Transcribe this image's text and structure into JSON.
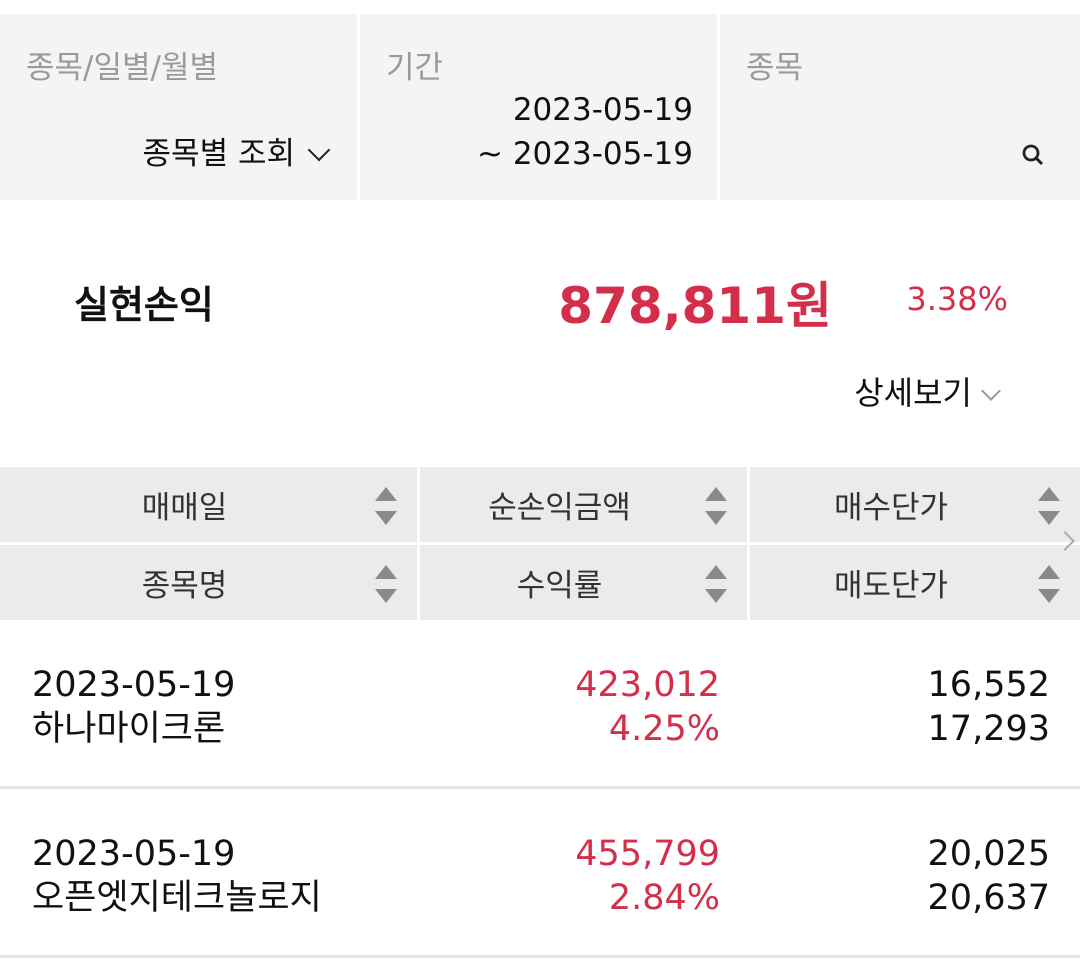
{
  "filters": {
    "type": {
      "label": "종목/일별/월별",
      "value": "종목별 조회"
    },
    "period": {
      "label": "기간",
      "from": "2023-05-19",
      "to": "~ 2023-05-19"
    },
    "stock": {
      "label": "종목",
      "icon": "search-icon"
    }
  },
  "summary": {
    "label": "실현손익",
    "amount": "878,811원",
    "rate": "3.38%",
    "detail": "상세보기",
    "accent": "#d42f4a"
  },
  "table": {
    "headers": [
      [
        "매매일",
        "순손익금액",
        "매수단가"
      ],
      [
        "종목명",
        "수익률",
        "매도단가"
      ]
    ],
    "rows": [
      {
        "date": "2023-05-19",
        "name": "하나마이크론",
        "profit": "423,012",
        "rate": "4.25%",
        "buy": "16,552",
        "sell": "17,293"
      },
      {
        "date": "2023-05-19",
        "name": "오픈엣지테크놀로지",
        "profit": "455,799",
        "rate": "2.84%",
        "buy": "20,025",
        "sell": "20,637"
      }
    ]
  }
}
